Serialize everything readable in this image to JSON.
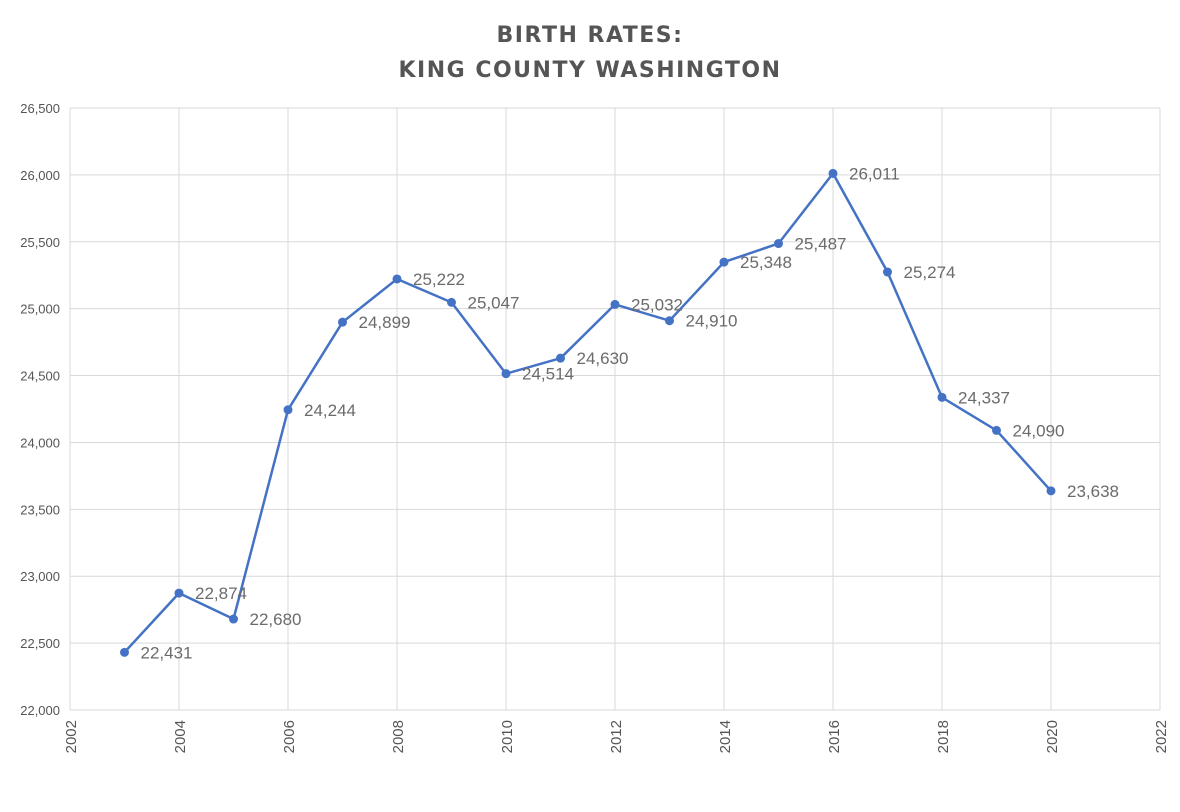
{
  "chart_data": {
    "type": "line",
    "title_lines": [
      "BIRTH RATES:",
      "KING COUNTY WASHINGTON"
    ],
    "xlabel": "",
    "ylabel": "",
    "xlim": [
      2002,
      2022
    ],
    "ylim": [
      22000,
      26500
    ],
    "x_ticks": [
      2002,
      2004,
      2006,
      2008,
      2010,
      2012,
      2014,
      2016,
      2018,
      2020,
      2022
    ],
    "y_ticks": [
      22000,
      22500,
      23000,
      23500,
      24000,
      24500,
      25000,
      25500,
      26000,
      26500
    ],
    "x_tick_labels": [
      "2002",
      "2004",
      "2006",
      "2008",
      "2010",
      "2012",
      "2014",
      "2016",
      "2018",
      "2020",
      "2022"
    ],
    "y_tick_labels": [
      "22,000",
      "22,500",
      "23,000",
      "23,500",
      "24,000",
      "24,500",
      "25,000",
      "25,500",
      "26,000",
      "26,500"
    ],
    "grid": true,
    "legend": "none",
    "series": [
      {
        "color": "#4472c4",
        "x": [
          2003,
          2004,
          2005,
          2006,
          2007,
          2008,
          2009,
          2010,
          2011,
          2012,
          2013,
          2014,
          2015,
          2016,
          2017,
          2018,
          2019,
          2020
        ],
        "values": [
          22431,
          22874,
          22680,
          24244,
          24899,
          25222,
          25047,
          24514,
          24630,
          25032,
          24910,
          25348,
          25487,
          26011,
          25274,
          24337,
          24090,
          23638
        ],
        "data_labels": [
          "22,431",
          "22,874",
          "22,680",
          "24,244",
          "24,899",
          "25,222",
          "25,047",
          "24,514",
          "24,630",
          "25,032",
          "24,910",
          "25,348",
          "25,487",
          "26,011",
          "25,274",
          "24,337",
          "24,090",
          "23,638"
        ]
      }
    ]
  }
}
